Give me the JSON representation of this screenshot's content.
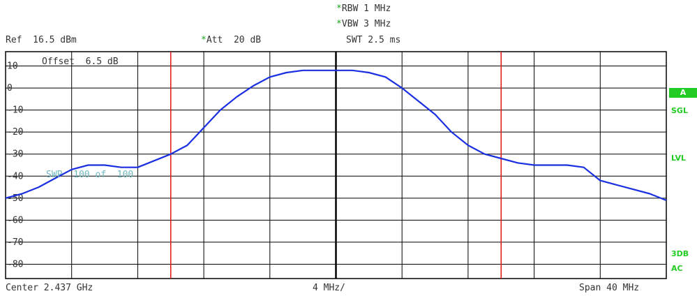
{
  "header": {
    "rbw": "RBW 1 MHz",
    "vbw": "VBW 3 MHz",
    "swt": "SWT 2.5 ms",
    "ref": "Ref  16.5 dBm",
    "att": "Att  20 dB",
    "offset": "Offset  6.5 dB",
    "sweep": "SWP  100 of  100",
    "star_glyph": "*"
  },
  "footer": {
    "center": "Center 2.437 GHz",
    "div": "4 MHz/",
    "span": "Span 40 MHz"
  },
  "side": {
    "badge": "A",
    "sgl": "SGL",
    "lvl": "LVL",
    "db3": "3DB",
    "ac": "AC"
  },
  "colors": {
    "trace": "#1a2fe0",
    "marker_lines": "#e01515",
    "grid": "#000000",
    "annotation": "#22cc22",
    "sweep_text": "#6fb8c0"
  },
  "chart_data": {
    "type": "line",
    "title": "",
    "xlabel": "",
    "ylabel": "",
    "center_mhz": 2437,
    "span_mhz": 40,
    "xlim": [
      2417,
      2457
    ],
    "ylim": [
      -86.5,
      16.5
    ],
    "yticks": [
      10,
      0,
      -10,
      -20,
      -30,
      -40,
      -50,
      -60,
      -70,
      -80
    ],
    "ytick_labels": [
      "10",
      "0",
      "-10",
      "-20",
      "-30",
      "-40",
      "-50",
      "-60",
      "-70",
      "-80"
    ],
    "grid": true,
    "vertical_lines_mhz": [
      2427,
      2447
    ],
    "series": [
      {
        "x": [
          2417,
          2418,
          2419,
          2420,
          2421,
          2422,
          2423,
          2424,
          2425,
          2426,
          2427,
          2428,
          2429,
          2430,
          2431,
          2432,
          2433,
          2434,
          2435,
          2436,
          2437,
          2438,
          2439,
          2440,
          2441,
          2442,
          2443,
          2444,
          2445,
          2446,
          2447,
          2448,
          2449,
          2450,
          2451,
          2452,
          2453,
          2454,
          2455,
          2456,
          2457
        ],
        "y": [
          -50,
          -48,
          -45,
          -41,
          -37,
          -35,
          -35,
          -36,
          -36,
          -33,
          -30,
          -26,
          -18,
          -10,
          -4,
          1,
          5,
          7,
          8,
          8,
          8,
          8,
          7,
          5,
          0,
          -6,
          -12,
          -20,
          -26,
          -30,
          -32,
          -34,
          -35,
          -35,
          -35,
          -36,
          -42,
          -44,
          -46,
          -48,
          -51
        ]
      }
    ]
  }
}
